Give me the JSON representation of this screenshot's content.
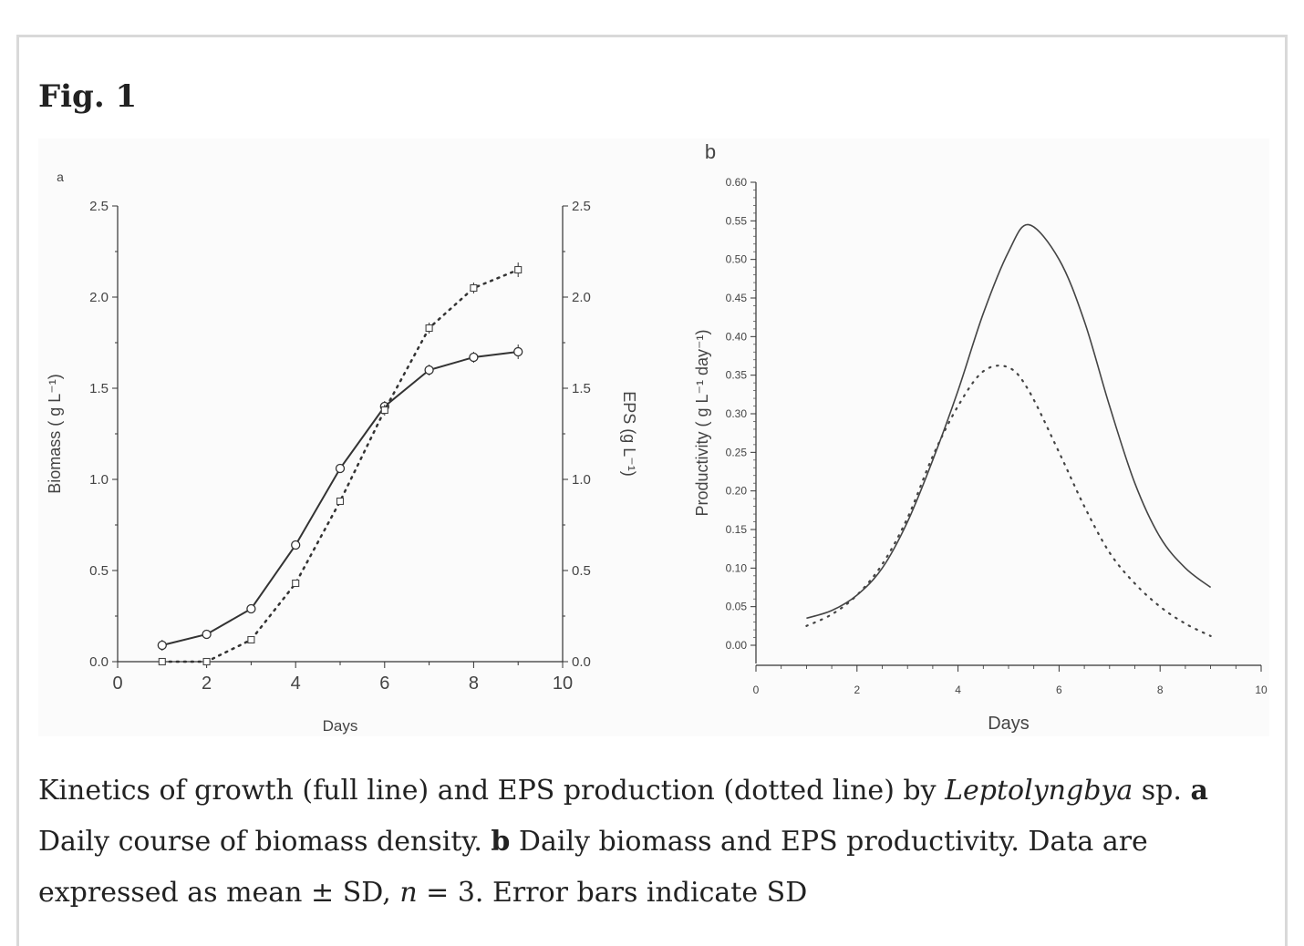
{
  "figure": {
    "title": "Fig. 1"
  },
  "caption": {
    "p1": "Kinetics of growth (full line) and EPS production (dotted line) by ",
    "organism": "Leptolyngbya",
    "p2": " sp. ",
    "a_label": "a",
    "p3": " Daily course of biomass density. ",
    "b_label": "b",
    "p4": " Daily biomass and EPS productivity. Data are expressed as mean ± SD, ",
    "n_label": "n",
    "p5": " = 3. Error bars indicate SD"
  },
  "chart_data": [
    {
      "panel": "a",
      "type": "line",
      "xlabel": "Days",
      "ylabel": "Biomass ( g L⁻¹)",
      "y2label": "EPS (g L⁻¹)",
      "xlim": [
        0,
        10
      ],
      "ylim": [
        0,
        2.5
      ],
      "y2lim": [
        0,
        2.5
      ],
      "x_ticks": [
        "0",
        "2",
        "4",
        "6",
        "8",
        "10"
      ],
      "y_ticks": [
        "0.0",
        "0.5",
        "1.0",
        "1.5",
        "2.0",
        "2.5"
      ],
      "y2_ticks": [
        "0.0",
        "0.5",
        "1.0",
        "1.5",
        "2.0",
        "2.5"
      ],
      "x": [
        1,
        2,
        3,
        4,
        5,
        6,
        7,
        8,
        9
      ],
      "series": [
        {
          "style": "solid",
          "marker": "circle",
          "axis": "left",
          "values": [
            0.09,
            0.15,
            0.29,
            0.64,
            1.06,
            1.4,
            1.6,
            1.67,
            1.7
          ],
          "errors": [
            0.03,
            0.02,
            0.02,
            0.02,
            0.02,
            0.03,
            0.03,
            0.03,
            0.04
          ]
        },
        {
          "style": "dotted",
          "marker": "square",
          "axis": "right",
          "values": [
            0.0,
            0.0,
            0.12,
            0.43,
            0.88,
            1.38,
            1.83,
            2.05,
            2.15
          ],
          "errors": [
            0.01,
            0.01,
            0.02,
            0.02,
            0.02,
            0.03,
            0.03,
            0.03,
            0.04
          ]
        }
      ]
    },
    {
      "panel": "b",
      "type": "line",
      "xlabel": "Days",
      "ylabel": "Productivity ( g L⁻¹ day⁻¹)",
      "xlim": [
        0,
        10
      ],
      "ylim": [
        0,
        0.6
      ],
      "x_ticks": [
        "0",
        "2",
        "4",
        "6",
        "8",
        "10"
      ],
      "y_ticks": [
        "0.00",
        "0.05",
        "0.10",
        "0.15",
        "0.20",
        "0.25",
        "0.30",
        "0.35",
        "0.40",
        "0.45",
        "0.50",
        "0.55",
        "0.60"
      ],
      "x": [
        1,
        1.5,
        2,
        2.5,
        3,
        3.5,
        4,
        4.5,
        5,
        5.4,
        6,
        6.5,
        7,
        7.5,
        8,
        8.5,
        9
      ],
      "series": [
        {
          "style": "solid",
          "values": [
            0.035,
            0.045,
            0.065,
            0.1,
            0.16,
            0.24,
            0.33,
            0.43,
            0.51,
            0.545,
            0.5,
            0.42,
            0.31,
            0.21,
            0.14,
            0.1,
            0.075
          ]
        },
        {
          "style": "dotted",
          "values": [
            0.025,
            0.04,
            0.065,
            0.105,
            0.165,
            0.245,
            0.31,
            0.355,
            0.36,
            0.33,
            0.25,
            0.18,
            0.12,
            0.08,
            0.05,
            0.028,
            0.012
          ]
        }
      ]
    }
  ]
}
